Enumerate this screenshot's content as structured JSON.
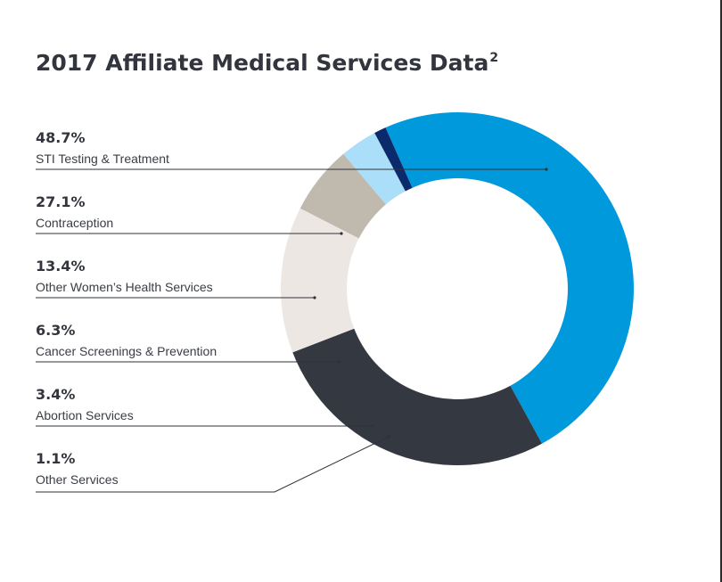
{
  "title": "2017 Affiliate Medical Services Data",
  "title_superscript": "2",
  "chart_data": {
    "type": "pie",
    "donut": true,
    "title": "2017 Affiliate Medical Services Data",
    "legend_placement": "left",
    "slices": [
      {
        "value_label": "48.7%",
        "label": "STI Testing & Treatment",
        "value": 48.7,
        "color": "#0099dc"
      },
      {
        "value_label": "27.1%",
        "label": "Contraception",
        "value": 27.1,
        "color": "#343840"
      },
      {
        "value_label": "13.4%",
        "label": "Other Women’s Health Services",
        "value": 13.4,
        "color": "#ece7e3"
      },
      {
        "value_label": "6.3%",
        "label": "Cancer Screenings & Prevention",
        "value": 6.3,
        "color": "#c0b9ad"
      },
      {
        "value_label": "3.4%",
        "label": "Abortion Services",
        "value": 3.4,
        "color": "#abdef8"
      },
      {
        "value_label": "1.1%",
        "label": "Other Services",
        "value": 1.1,
        "color": "#0b2a6c"
      }
    ]
  }
}
